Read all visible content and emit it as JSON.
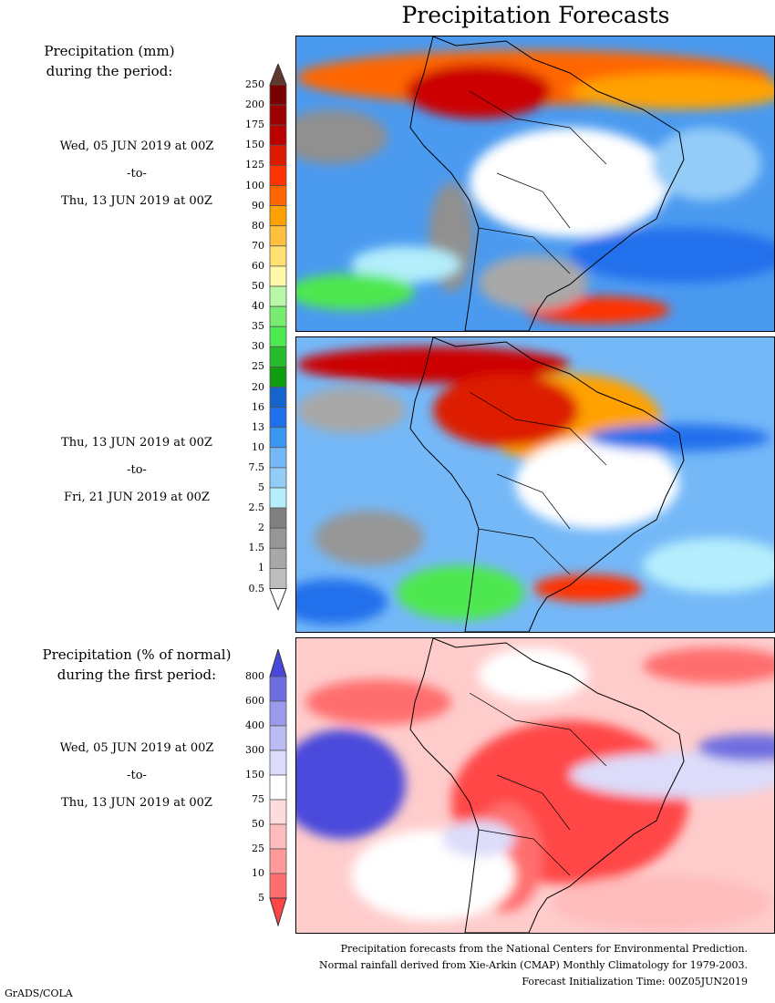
{
  "title": "Precipitation Forecasts",
  "legend_mm": {
    "heading_line1": "Precipitation (mm)",
    "heading_line2": "during the period:",
    "ticks": [
      "250",
      "200",
      "175",
      "150",
      "125",
      "100",
      "90",
      "80",
      "70",
      "60",
      "50",
      "40",
      "35",
      "30",
      "25",
      "20",
      "16",
      "13",
      "10",
      "7.5",
      "5",
      "2.5",
      "2",
      "1.5",
      "1",
      "0.5"
    ],
    "colors": [
      "#7a0000",
      "#9c0000",
      "#bb0000",
      "#dd1a00",
      "#ff3300",
      "#ff6600",
      "#ffa200",
      "#ffc040",
      "#ffe070",
      "#fff8a8",
      "#b8f8a8",
      "#78ec70",
      "#4ee850",
      "#26bc2c",
      "#109c10",
      "#1464cc",
      "#2070ec",
      "#3a96f0",
      "#74b8f8",
      "#94ccf8",
      "#b4eefc",
      "#808080",
      "#969696",
      "#a8a8a8",
      "#bebebe"
    ],
    "top_arrow_color": "#603830",
    "bottom_arrow_color": "#ffffff"
  },
  "period1": {
    "start": "Wed, 05 JUN 2019 at 00Z",
    "sep": "-to-",
    "end": "Thu, 13 JUN 2019 at 00Z"
  },
  "period2": {
    "start": "Thu, 13 JUN 2019 at 00Z",
    "sep": "-to-",
    "end": "Fri, 21 JUN 2019 at 00Z"
  },
  "legend_pct": {
    "heading_line1": "Precipitation (% of normal)",
    "heading_line2": "during the first period:",
    "ticks": [
      "800",
      "600",
      "400",
      "300",
      "150",
      "75",
      "50",
      "25",
      "10",
      "5"
    ],
    "colors": [
      "#6e6ee0",
      "#9a9aec",
      "#bcbcf4",
      "#dcdcfa",
      "#ffffff",
      "#ffdcdc",
      "#ffbcbc",
      "#ff9a9a",
      "#ff6e6e"
    ],
    "top_arrow_color": "#4848dc",
    "bottom_arrow_color": "#ff4646"
  },
  "period3": {
    "start": "Wed, 05 JUN 2019 at 00Z",
    "sep": "-to-",
    "end": "Thu, 13 JUN 2019 at 00Z"
  },
  "footer": {
    "line1": "Precipitation forecasts from the National Centers for Environmental Prediction.",
    "line2": "Normal rainfall derived from Xie-Arkin (CMAP) Monthly Climatology for 1979-2003.",
    "line3": "Forecast Initialization Time: 00Z05JUN2019"
  },
  "credit": "GrADS/COLA"
}
